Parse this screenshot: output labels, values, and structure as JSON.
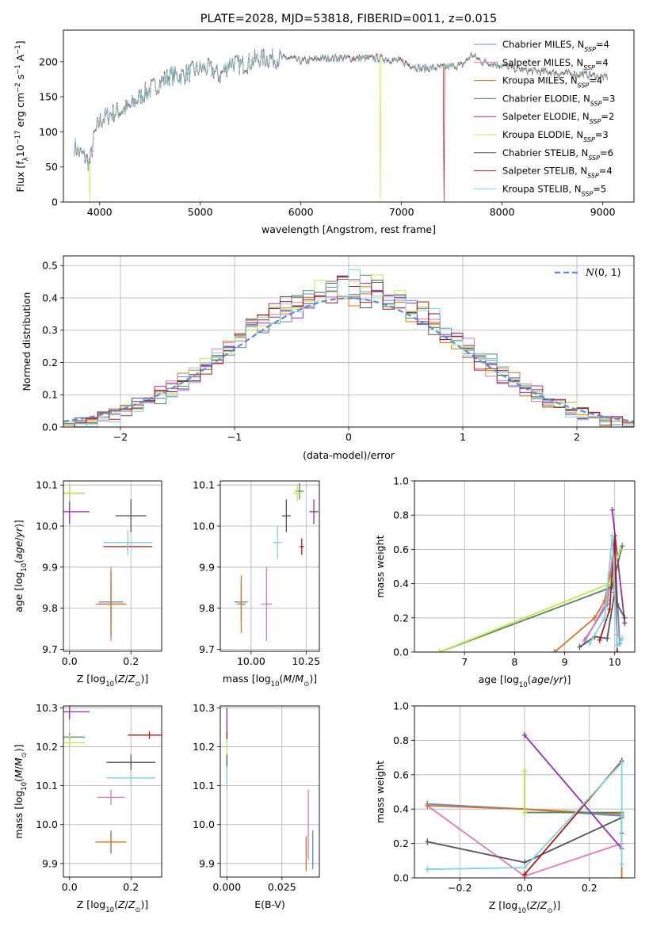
{
  "colors": {
    "Chabrier MILES": "#5b8bd6",
    "Salpeter MILES": "#e277b7",
    "Kroupa MILES": "#d8741f",
    "Chabrier ELODIE": "#4f8a57",
    "Salpeter ELODIE": "#9a2cb2",
    "Kroupa ELODIE": "#c4e84b",
    "Chabrier STELIB": "#555555",
    "Salpeter STELIB": "#b01818",
    "Kroupa STELIB": "#7fd3de",
    "gaussian": "#5b8bd6",
    "grid": "#b0b0b0"
  },
  "chart_data": [
    {
      "id": "spectrum",
      "type": "line",
      "title": "PLATE=2028, MJD=53818, FIBERID=0011, z=0.015",
      "xlabel": "wavelength [Angstrom, rest frame]",
      "ylabel": "Flux [f_λ 10^-17 erg cm^-2 s^-1 A^-1]",
      "xlim": [
        3640,
        9310
      ],
      "ylim": [
        0,
        245
      ],
      "xticks": [
        4000,
        5000,
        6000,
        7000,
        8000,
        9000
      ],
      "yticks": [
        0,
        50,
        100,
        150,
        200
      ],
      "grid": false,
      "legend_placement": "upper right",
      "legend": [
        "Chabrier MILES, N_SSP=4",
        "Salpeter MILES, N_SSP=4",
        "Kroupa MILES, N_SSP=4",
        "Chabrier ELODIE, N_SSP=3",
        "Salpeter ELODIE, N_SSP=2",
        "Kroupa ELODIE, N_SSP=3",
        "Chabrier STELIB, N_SSP=6",
        "Salpeter STELIB, N_SSP=4",
        "Kroupa STELIB, N_SSP=5"
      ],
      "continuum": {
        "x": [
          3750,
          3800,
          3850,
          3900,
          3950,
          4000,
          4050,
          4100,
          4200,
          4300,
          4400,
          4500,
          4600,
          4700,
          4800,
          4900,
          5000,
          5100,
          5200,
          5300,
          5400,
          5500,
          5600,
          5700,
          5800,
          5900,
          6000,
          6200,
          6400,
          6600,
          6800,
          7000,
          7200,
          7400,
          7600,
          7700,
          7800,
          8000,
          8200,
          8400,
          8600,
          8800,
          9000,
          9050
        ],
        "y": [
          80,
          70,
          65,
          55,
          95,
          115,
          120,
          125,
          130,
          135,
          150,
          160,
          170,
          180,
          180,
          185,
          190,
          190,
          180,
          200,
          195,
          200,
          205,
          205,
          205,
          205,
          200,
          205,
          205,
          205,
          205,
          200,
          190,
          192,
          195,
          210,
          200,
          195,
          188,
          186,
          183,
          182,
          178,
          178
        ]
      },
      "dropouts": [
        {
          "x": 3900,
          "series": "Kroupa ELODIE"
        },
        {
          "x": 6790,
          "series": "Kroupa ELODIE"
        },
        {
          "x": 7420,
          "series": "Salpeter STELIB"
        }
      ]
    },
    {
      "id": "residuals",
      "type": "step-histogram",
      "xlabel": "(data-model)/error",
      "ylabel": "Normed distribution",
      "xlim": [
        -2.5,
        2.5
      ],
      "ylim": [
        0,
        0.53
      ],
      "xticks": [
        -2,
        -1,
        0,
        1,
        2
      ],
      "yticks": [
        0.0,
        0.1,
        0.2,
        0.3,
        0.4,
        0.5
      ],
      "grid": true,
      "legend_placement": "upper right",
      "legend": [
        "N(0,1)"
      ],
      "bin_width": 0.1,
      "gaussian": {
        "mean": 0,
        "sigma": 1
      }
    },
    {
      "id": "age-vs-Z",
      "type": "errorbar",
      "xlabel": "Z [log10(Z/Z⊙)]",
      "ylabel": "age [log10(age/yr)]",
      "xlim": [
        -0.02,
        0.3
      ],
      "ylim": [
        9.695,
        10.11
      ],
      "xticks": [
        0.0,
        0.2
      ],
      "yticks": [
        9.7,
        9.8,
        9.9,
        10.0,
        10.1
      ],
      "grid": true,
      "points": [
        {
          "series": "Chabrier MILES",
          "x": 0.135,
          "y": 9.815,
          "xerr": 0.04,
          "yerr": 0.05
        },
        {
          "series": "Salpeter MILES",
          "x": 0.135,
          "y": 9.81,
          "xerr": 0.04,
          "yerr": 0.09
        },
        {
          "series": "Kroupa MILES",
          "x": 0.135,
          "y": 9.81,
          "xerr": 0.05,
          "yerr": 0.08
        },
        {
          "series": "Chabrier ELODIE",
          "x": 0.0,
          "y": 10.08,
          "xerr": 0.05,
          "yerr": 0.02
        },
        {
          "series": "Salpeter ELODIE",
          "x": 0.0,
          "y": 10.035,
          "xerr": 0.065,
          "yerr": 0.03
        },
        {
          "series": "Kroupa ELODIE",
          "x": 0.0,
          "y": 10.08,
          "xerr": 0.05,
          "yerr": 0.02
        },
        {
          "series": "Chabrier STELIB",
          "x": 0.2,
          "y": 10.025,
          "xerr": 0.05,
          "yerr": 0.04
        },
        {
          "series": "Salpeter STELIB",
          "x": 0.19,
          "y": 9.95,
          "xerr": 0.08,
          "yerr": 0.01
        },
        {
          "series": "Kroupa STELIB",
          "x": 0.19,
          "y": 9.96,
          "xerr": 0.08,
          "yerr": 0.03
        }
      ]
    },
    {
      "id": "age-vs-mass",
      "type": "errorbar",
      "xlabel": "mass [log10(M/M⊙)]",
      "ylabel": "",
      "xlim": [
        9.86,
        10.31
      ],
      "ylim": [
        9.695,
        10.11
      ],
      "xticks": [
        10.0,
        10.25
      ],
      "yticks": [
        9.7,
        9.8,
        9.9,
        10.0,
        10.1
      ],
      "grid": true,
      "points": [
        {
          "series": "Chabrier MILES",
          "x": 9.955,
          "y": 9.815,
          "xerr": 0.03,
          "yerr": 0.05
        },
        {
          "series": "Salpeter MILES",
          "x": 10.07,
          "y": 9.81,
          "xerr": 0.025,
          "yerr": 0.09
        },
        {
          "series": "Kroupa MILES",
          "x": 9.955,
          "y": 9.81,
          "xerr": 0.02,
          "yerr": 0.07
        },
        {
          "series": "Chabrier ELODIE",
          "x": 10.22,
          "y": 10.085,
          "xerr": 0.02,
          "yerr": 0.02
        },
        {
          "series": "Salpeter ELODIE",
          "x": 10.285,
          "y": 10.035,
          "xerr": 0.02,
          "yerr": 0.03
        },
        {
          "series": "Kroupa ELODIE",
          "x": 10.21,
          "y": 10.08,
          "xerr": 0.02,
          "yerr": 0.02
        },
        {
          "series": "Chabrier STELIB",
          "x": 10.16,
          "y": 10.025,
          "xerr": 0.02,
          "yerr": 0.04
        },
        {
          "series": "Salpeter STELIB",
          "x": 10.23,
          "y": 9.95,
          "xerr": 0.01,
          "yerr": 0.02
        },
        {
          "series": "Kroupa STELIB",
          "x": 10.12,
          "y": 9.96,
          "xerr": 0.02,
          "yerr": 0.04
        }
      ]
    },
    {
      "id": "massweight-vs-age",
      "type": "line",
      "xlabel": "age [log10(age/yr)]",
      "ylabel": "mass weight",
      "xlim": [
        6.0,
        10.4
      ],
      "ylim": [
        0,
        1.0
      ],
      "xticks": [
        7,
        8,
        9,
        10
      ],
      "yticks": [
        0.0,
        0.2,
        0.4,
        0.6,
        0.8,
        1.0
      ],
      "grid": true,
      "series": [
        {
          "name": "Chabrier MILES",
          "x": [
            9.4,
            9.85,
            10.0,
            10.1
          ],
          "y": [
            0.07,
            0.28,
            0.62,
            0.05
          ]
        },
        {
          "name": "Salpeter MILES",
          "x": [
            9.4,
            9.85,
            9.95,
            10.05
          ],
          "y": [
            0.06,
            0.3,
            0.55,
            0.1
          ]
        },
        {
          "name": "Kroupa MILES",
          "x": [
            8.8,
            9.6,
            9.8,
            9.9
          ],
          "y": [
            0.0,
            0.2,
            0.3,
            0.45
          ]
        },
        {
          "name": "Chabrier ELODIE",
          "x": [
            6.5,
            9.95,
            10.15
          ],
          "y": [
            0.0,
            0.38,
            0.62
          ]
        },
        {
          "name": "Salpeter ELODIE",
          "x": [
            9.95,
            10.2
          ],
          "y": [
            0.83,
            0.17
          ]
        },
        {
          "name": "Kroupa ELODIE",
          "x": [
            6.5,
            9.9,
            10.1
          ],
          "y": [
            0.0,
            0.4,
            0.6
          ]
        },
        {
          "name": "Chabrier STELIB",
          "x": [
            9.3,
            9.6,
            9.85,
            10.0,
            10.05,
            10.2
          ],
          "y": [
            0.03,
            0.09,
            0.08,
            0.35,
            0.28,
            0.2
          ]
        },
        {
          "name": "Salpeter STELIB",
          "x": [
            9.7,
            9.9,
            10.0,
            10.05
          ],
          "y": [
            0.07,
            0.25,
            0.68,
            0.0
          ]
        },
        {
          "name": "Kroupa STELIB",
          "x": [
            9.5,
            9.8,
            9.95,
            10.05,
            10.15
          ],
          "y": [
            0.05,
            0.2,
            0.68,
            0.04,
            0.08
          ]
        }
      ]
    },
    {
      "id": "mass-vs-Z",
      "type": "errorbar",
      "xlabel": "Z [log10(Z/Z⊙)]",
      "ylabel": "mass [log10(M/M⊙)]",
      "xlim": [
        -0.02,
        0.3
      ],
      "ylim": [
        9.865,
        10.305
      ],
      "xticks": [
        0.0,
        0.2
      ],
      "yticks": [
        9.9,
        10.0,
        10.1,
        10.2,
        10.3
      ],
      "grid": true,
      "points": [
        {
          "series": "Chabrier MILES",
          "x": 0.135,
          "y": 9.955,
          "xerr": 0.05,
          "yerr": 0.03
        },
        {
          "series": "Salpeter MILES",
          "x": 0.135,
          "y": 10.07,
          "xerr": 0.045,
          "yerr": 0.02
        },
        {
          "series": "Kroupa MILES",
          "x": 0.135,
          "y": 9.955,
          "xerr": 0.05,
          "yerr": 0.025
        },
        {
          "series": "Chabrier ELODIE",
          "x": 0.0,
          "y": 10.225,
          "xerr": 0.05,
          "yerr": 0.01
        },
        {
          "series": "Salpeter ELODIE",
          "x": 0.0,
          "y": 10.29,
          "xerr": 0.065,
          "yerr": 0.02
        },
        {
          "series": "Kroupa ELODIE",
          "x": 0.0,
          "y": 10.21,
          "xerr": 0.05,
          "yerr": 0.02
        },
        {
          "series": "Chabrier STELIB",
          "x": 0.2,
          "y": 10.16,
          "xerr": 0.08,
          "yerr": 0.02
        },
        {
          "series": "Salpeter STELIB",
          "x": 0.26,
          "y": 10.23,
          "xerr": 0.07,
          "yerr": 0.01
        },
        {
          "series": "Kroupa STELIB",
          "x": 0.2,
          "y": 10.12,
          "xerr": 0.08,
          "yerr": 0.02
        }
      ]
    },
    {
      "id": "mass-vs-ebv",
      "type": "errorbar",
      "xlabel": "E(B-V)",
      "ylabel": "",
      "xlim": [
        -0.003,
        0.042
      ],
      "ylim": [
        9.865,
        10.305
      ],
      "xticks": [
        0.0,
        0.025
      ],
      "xticklabels": [
        "0.000",
        "0.025"
      ],
      "yticks": [
        9.9,
        10.0,
        10.1,
        10.2,
        10.3
      ],
      "grid": true,
      "points": [
        {
          "series": "Chabrier MILES",
          "x": 0.039,
          "y": 9.935,
          "xerr": 0.0,
          "yerr": 0.05
        },
        {
          "series": "Salpeter MILES",
          "x": 0.037,
          "y": 10.0,
          "xerr": 0.0,
          "yerr": 0.09
        },
        {
          "series": "Kroupa MILES",
          "x": 0.036,
          "y": 9.925,
          "xerr": 0.0,
          "yerr": 0.045
        },
        {
          "series": "Chabrier ELODIE",
          "x": 0.0,
          "y": 10.225,
          "xerr": 0.0,
          "yerr": 0.015
        },
        {
          "series": "Salpeter ELODIE",
          "x": 0.0,
          "y": 10.27,
          "xerr": 0.0,
          "yerr": 0.03
        },
        {
          "series": "Kroupa ELODIE",
          "x": 0.0,
          "y": 10.2,
          "xerr": 0.0,
          "yerr": 0.025
        },
        {
          "series": "Chabrier STELIB",
          "x": 0.0,
          "y": 10.16,
          "xerr": 0.0,
          "yerr": 0.02
        },
        {
          "series": "Salpeter STELIB",
          "x": 0.0,
          "y": 10.23,
          "xerr": 0.0,
          "yerr": 0.01
        },
        {
          "series": "Kroupa STELIB",
          "x": 0.0,
          "y": 10.12,
          "xerr": 0.0,
          "yerr": 0.03
        }
      ]
    },
    {
      "id": "massweight-vs-Z",
      "type": "line",
      "xlabel": "Z [log10(Z/Z⊙)]",
      "ylabel": "mass weight",
      "xlim": [
        -0.34,
        0.34
      ],
      "ylim": [
        0,
        1.0
      ],
      "xticks": [
        -0.2,
        0.0,
        0.2
      ],
      "xticklabels": [
        "−0.2",
        "0.0",
        "0.2"
      ],
      "yticks": [
        0.0,
        0.2,
        0.4,
        0.6,
        0.8,
        1.0
      ],
      "grid": true,
      "series": [
        {
          "name": "Chabrier MILES",
          "x": [
            -0.3,
            0.0,
            0.3
          ],
          "y": [
            0.43,
            0.4,
            0.36
          ]
        },
        {
          "name": "Salpeter MILES",
          "x": [
            -0.3,
            0.0,
            0.3
          ],
          "y": [
            0.42,
            0.01,
            0.2
          ]
        },
        {
          "name": "Kroupa MILES",
          "x": [
            -0.3,
            0.0,
            0.3,
            0.3
          ],
          "y": [
            0.42,
            0.4,
            0.37,
            0.0
          ]
        },
        {
          "name": "Chabrier ELODIE",
          "x": [
            0.0,
            0.0,
            0.3
          ],
          "y": [
            0.62,
            0.38,
            0.38
          ]
        },
        {
          "name": "Salpeter ELODIE",
          "x": [
            0.0,
            0.3
          ],
          "y": [
            0.83,
            0.17
          ]
        },
        {
          "name": "Kroupa ELODIE",
          "x": [
            0.0,
            0.0
          ],
          "y": [
            0.62,
            0.38
          ]
        },
        {
          "name": "Chabrier STELIB",
          "x": [
            -0.3,
            0.0,
            0.3,
            0.3
          ],
          "y": [
            0.21,
            0.09,
            0.35,
            0.26
          ]
        },
        {
          "name": "Salpeter STELIB",
          "x": [
            0.0,
            0.3
          ],
          "y": [
            0.02,
            0.68
          ]
        },
        {
          "name": "Kroupa STELIB",
          "x": [
            -0.3,
            0.0,
            0.3,
            0.3
          ],
          "y": [
            0.05,
            0.06,
            0.67,
            0.08
          ]
        }
      ]
    }
  ]
}
